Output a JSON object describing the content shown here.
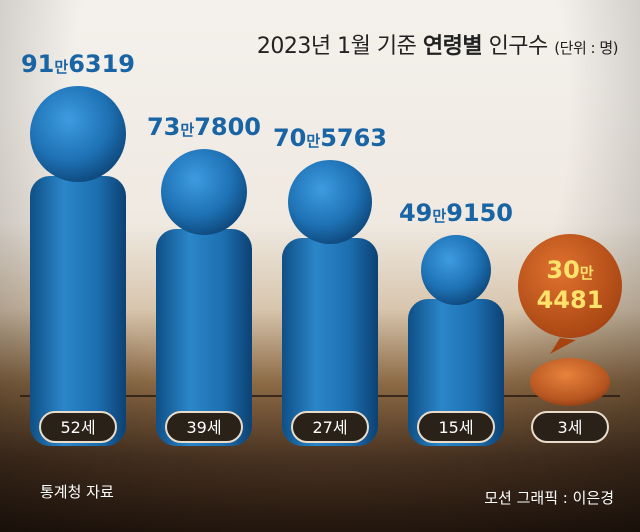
{
  "header": {
    "title_part1": "2023년 1월 기준 ",
    "title_bold": "연령별",
    "title_part2": " 인구수 ",
    "unit": "(단위 : 명)"
  },
  "footer": {
    "source": "통계청 자료",
    "credit": "모션 그래픽 : 이은경"
  },
  "colors": {
    "bar": "#1f74b6",
    "highlight": "#c55a1b",
    "label_blue": "#1864a5",
    "label_yellow": "#ffe26b"
  },
  "chart_data": {
    "type": "bar",
    "categories": [
      "52세",
      "39세",
      "27세",
      "15세",
      "3세"
    ],
    "values": [
      916319,
      737800,
      705763,
      499150,
      304481
    ],
    "value_labels": [
      {
        "big1": "91",
        "small": "만",
        "big2": "6319"
      },
      {
        "big1": "73",
        "small": "만",
        "big2": "7800"
      },
      {
        "big1": "70",
        "small": "만",
        "big2": "5763"
      },
      {
        "big1": "49",
        "small": "만",
        "big2": "9150"
      },
      {
        "big1": "30",
        "small": "만",
        "big2": "4481"
      }
    ],
    "highlight_index": 4
  }
}
